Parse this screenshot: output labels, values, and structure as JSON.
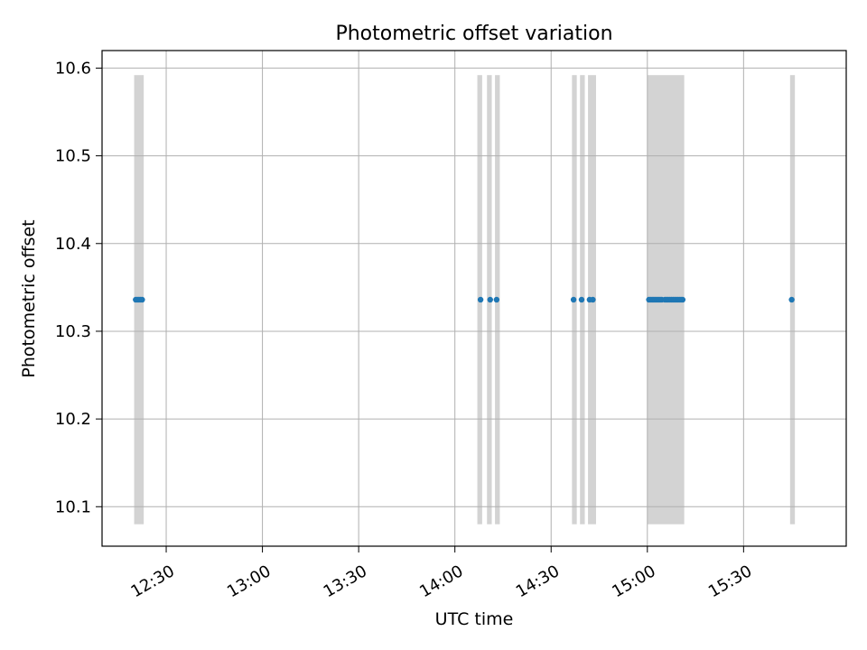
{
  "chart_data": {
    "type": "scatter",
    "title": "Photometric offset variation",
    "xlabel": "UTC time",
    "ylabel": "Photometric offset",
    "x_is_time": true,
    "xlim": [
      "12:10",
      "16:02"
    ],
    "ylim": [
      10.055,
      10.62
    ],
    "grid": true,
    "x_ticks": [
      "12:30",
      "13:00",
      "13:30",
      "14:00",
      "14:30",
      "15:00",
      "15:30"
    ],
    "y_ticks": [
      10.1,
      10.2,
      10.3,
      10.4,
      10.5,
      10.6
    ],
    "y_tick_labels": [
      "10.1",
      "10.2",
      "10.3",
      "10.4",
      "10.5",
      "10.6"
    ],
    "colors": {
      "points": "#1f77b4",
      "bands": "#d3d3d3",
      "grid": "#b0b0b0"
    },
    "bands": [
      {
        "start": "12:20",
        "end": "12:23",
        "y_low": 10.08,
        "y_high": 10.592
      },
      {
        "start": "14:07",
        "end": "14:08.5",
        "y_low": 10.08,
        "y_high": 10.592
      },
      {
        "start": "14:10",
        "end": "14:11.5",
        "y_low": 10.08,
        "y_high": 10.592
      },
      {
        "start": "14:12.5",
        "end": "14:14",
        "y_low": 10.08,
        "y_high": 10.592
      },
      {
        "start": "14:36.5",
        "end": "14:38",
        "y_low": 10.08,
        "y_high": 10.592
      },
      {
        "start": "14:39",
        "end": "14:40.5",
        "y_low": 10.08,
        "y_high": 10.592
      },
      {
        "start": "14:41.5",
        "end": "14:44",
        "y_low": 10.08,
        "y_high": 10.592
      },
      {
        "start": "15:00",
        "end": "15:11.5",
        "y_low": 10.08,
        "y_high": 10.592
      },
      {
        "start": "15:44.5",
        "end": "15:46",
        "y_low": 10.08,
        "y_high": 10.592
      }
    ],
    "series": [
      {
        "x": [
          "12:20.5",
          "12:21",
          "12:21.5",
          "12:22",
          "12:22.5",
          "14:08",
          "14:11",
          "14:13",
          "14:37",
          "14:39.5",
          "14:42",
          "14:43",
          "15:00.5",
          "15:01",
          "15:01.5",
          "15:02",
          "15:02.5",
          "15:03",
          "15:03.5",
          "15:04",
          "15:04.5",
          "15:05.5",
          "15:06",
          "15:06.5",
          "15:07",
          "15:07.5",
          "15:08",
          "15:08.5",
          "15:09",
          "15:09.5",
          "15:10",
          "15:10.5",
          "15:11",
          "15:45"
        ],
        "y": [
          10.336,
          10.336,
          10.336,
          10.336,
          10.336,
          10.336,
          10.336,
          10.336,
          10.336,
          10.336,
          10.336,
          10.336,
          10.336,
          10.336,
          10.336,
          10.336,
          10.336,
          10.336,
          10.336,
          10.336,
          10.336,
          10.336,
          10.336,
          10.336,
          10.336,
          10.336,
          10.336,
          10.336,
          10.336,
          10.336,
          10.336,
          10.336,
          10.336,
          10.336
        ]
      }
    ]
  }
}
